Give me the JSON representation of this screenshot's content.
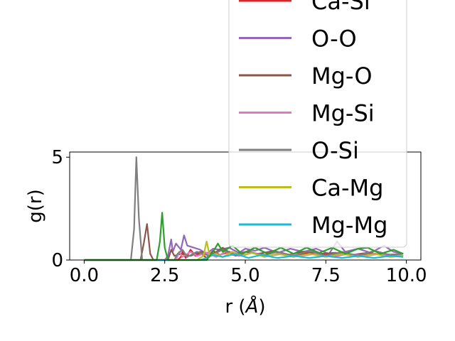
{
  "chart_data": {
    "type": "line",
    "xlabel": "r (",
    "xlabel_unit": "Å",
    "xlabel_close": ")",
    "ylabel": "g(r)",
    "xlim": [
      -0.45,
      10.45
    ],
    "ylim": [
      0,
      5.25
    ],
    "xticks": [
      {
        "value": 0.0,
        "label": "0.0"
      },
      {
        "value": 2.5,
        "label": "2.5"
      },
      {
        "value": 5.0,
        "label": "5.0"
      },
      {
        "value": 7.5,
        "label": "7.5"
      },
      {
        "value": 10.0,
        "label": "10.0"
      }
    ],
    "yticks": [
      {
        "value": 0,
        "label": "0"
      },
      {
        "value": 5,
        "label": "5"
      }
    ],
    "grid": false,
    "legend_position": "upper right, extending above the axes",
    "series": [
      {
        "name": "Ca-Si",
        "color": "#d62728",
        "points": [
          [
            0,
            0
          ],
          [
            2.9,
            0
          ],
          [
            3.0,
            0.15
          ],
          [
            3.05,
            0.4
          ],
          [
            3.15,
            0.1
          ],
          [
            3.3,
            0.5
          ],
          [
            3.45,
            0.2
          ],
          [
            3.6,
            0.35
          ],
          [
            3.8,
            0.1
          ],
          [
            4.0,
            0.45
          ],
          [
            4.2,
            0.25
          ],
          [
            4.5,
            0.4
          ],
          [
            4.8,
            0.2
          ],
          [
            5.2,
            0.35
          ],
          [
            5.6,
            0.25
          ],
          [
            6.0,
            0.4
          ],
          [
            6.5,
            0.2
          ],
          [
            7.0,
            0.35
          ],
          [
            7.5,
            0.25
          ],
          [
            8.0,
            0.3
          ],
          [
            8.5,
            0.2
          ],
          [
            9.0,
            0.3
          ],
          [
            9.5,
            0.25
          ],
          [
            9.9,
            0.2
          ]
        ]
      },
      {
        "name": "O-O",
        "color": "#9467bd",
        "points": [
          [
            0,
            0
          ],
          [
            2.5,
            0
          ],
          [
            2.6,
            0.2
          ],
          [
            2.7,
            1.0
          ],
          [
            2.75,
            0.4
          ],
          [
            2.85,
            0.8
          ],
          [
            3.0,
            0.5
          ],
          [
            3.1,
            1.2
          ],
          [
            3.2,
            0.7
          ],
          [
            3.4,
            0.6
          ],
          [
            3.6,
            0.5
          ],
          [
            3.8,
            0.3
          ],
          [
            4.0,
            0.55
          ],
          [
            4.2,
            0.5
          ],
          [
            4.5,
            0.6
          ],
          [
            4.8,
            0.35
          ],
          [
            5.0,
            0.55
          ],
          [
            5.3,
            0.45
          ],
          [
            5.6,
            0.6
          ],
          [
            6.0,
            0.35
          ],
          [
            6.4,
            0.55
          ],
          [
            6.8,
            0.4
          ],
          [
            7.2,
            0.55
          ],
          [
            7.6,
            0.3
          ],
          [
            7.85,
            0.9
          ],
          [
            8.1,
            0.4
          ],
          [
            8.5,
            0.55
          ],
          [
            8.9,
            0.35
          ],
          [
            9.3,
            0.7
          ],
          [
            9.6,
            0.4
          ],
          [
            9.9,
            0.3
          ]
        ]
      },
      {
        "name": "Mg-O",
        "color": "#8c564b",
        "points": [
          [
            0,
            0
          ],
          [
            1.75,
            0
          ],
          [
            1.85,
            0.8
          ],
          [
            1.95,
            1.75
          ],
          [
            2.05,
            0.3
          ],
          [
            2.15,
            0
          ],
          [
            2.6,
            0
          ],
          [
            2.7,
            0.5
          ],
          [
            2.8,
            0.2
          ],
          [
            3.0,
            0.3
          ],
          [
            3.3,
            0.2
          ],
          [
            3.6,
            0.4
          ],
          [
            4.0,
            0.3
          ],
          [
            4.3,
            0.6
          ],
          [
            4.6,
            0.25
          ],
          [
            5.0,
            0.4
          ],
          [
            5.4,
            0.3
          ],
          [
            5.9,
            0.45
          ],
          [
            6.3,
            0.25
          ],
          [
            6.8,
            0.4
          ],
          [
            7.3,
            0.3
          ],
          [
            7.8,
            0.35
          ],
          [
            8.3,
            0.25
          ],
          [
            8.8,
            0.35
          ],
          [
            9.3,
            0.25
          ],
          [
            9.9,
            0.3
          ]
        ]
      },
      {
        "name": "Mg-Si",
        "color": "#e377c2",
        "points": [
          [
            0,
            0
          ],
          [
            2.85,
            0
          ],
          [
            2.95,
            0.4
          ],
          [
            3.05,
            0.15
          ],
          [
            3.3,
            0.4
          ],
          [
            3.5,
            0.2
          ],
          [
            3.8,
            0.35
          ],
          [
            4.1,
            0.15
          ],
          [
            4.4,
            0.4
          ],
          [
            4.8,
            0.2
          ],
          [
            5.2,
            0.35
          ],
          [
            5.7,
            0.2
          ],
          [
            6.2,
            0.3
          ],
          [
            6.7,
            0.2
          ],
          [
            7.2,
            0.3
          ],
          [
            7.7,
            0.15
          ],
          [
            8.2,
            0.3
          ],
          [
            8.7,
            0.2
          ],
          [
            9.2,
            0.3
          ],
          [
            9.9,
            0.2
          ]
        ]
      },
      {
        "name": "O-Si",
        "color": "#7f7f7f",
        "points": [
          [
            0,
            0
          ],
          [
            1.45,
            0
          ],
          [
            1.55,
            1.5
          ],
          [
            1.62,
            5.0
          ],
          [
            1.7,
            2.0
          ],
          [
            1.8,
            0
          ],
          [
            2.8,
            0
          ],
          [
            2.9,
            0.3
          ],
          [
            3.05,
            0.5
          ],
          [
            3.2,
            0.15
          ],
          [
            3.5,
            0.4
          ],
          [
            3.9,
            0.2
          ],
          [
            4.3,
            0.5
          ],
          [
            4.7,
            0.2
          ],
          [
            5.1,
            0.45
          ],
          [
            5.5,
            0.2
          ],
          [
            6.0,
            0.4
          ],
          [
            6.5,
            0.2
          ],
          [
            7.0,
            0.45
          ],
          [
            7.5,
            0.2
          ],
          [
            8.0,
            0.4
          ],
          [
            8.5,
            0.2
          ],
          [
            9.0,
            0.45
          ],
          [
            9.5,
            0.25
          ],
          [
            9.9,
            0.3
          ]
        ]
      },
      {
        "name": "Ca-Mg",
        "color": "#bcbd22",
        "points": [
          [
            0,
            0
          ],
          [
            3.5,
            0
          ],
          [
            3.7,
            0.2
          ],
          [
            3.8,
            0.9
          ],
          [
            3.9,
            0.2
          ],
          [
            4.1,
            0.3
          ],
          [
            4.3,
            0.15
          ],
          [
            4.6,
            0.4
          ],
          [
            4.9,
            0.2
          ],
          [
            5.2,
            0.35
          ],
          [
            5.6,
            0.15
          ],
          [
            6.0,
            0.3
          ],
          [
            6.5,
            0.15
          ],
          [
            7.0,
            0.3
          ],
          [
            7.5,
            0.15
          ],
          [
            8.0,
            0.3
          ],
          [
            8.5,
            0.15
          ],
          [
            9.0,
            0.3
          ],
          [
            9.5,
            0.15
          ],
          [
            9.9,
            0.2
          ]
        ]
      },
      {
        "name": "Mg-Mg",
        "color": "#17becf",
        "points": [
          [
            0,
            0
          ],
          [
            3.6,
            0
          ],
          [
            3.8,
            0.1
          ],
          [
            4.0,
            0.25
          ],
          [
            4.3,
            0.15
          ],
          [
            4.7,
            0.3
          ],
          [
            5.1,
            0.1
          ],
          [
            5.5,
            0.25
          ],
          [
            6.0,
            0.1
          ],
          [
            6.5,
            0.2
          ],
          [
            7.0,
            0.1
          ],
          [
            7.5,
            0.2
          ],
          [
            8.0,
            0.1
          ],
          [
            8.5,
            0.2
          ],
          [
            9.0,
            0.1
          ],
          [
            9.5,
            0.2
          ],
          [
            9.9,
            0.15
          ]
        ]
      },
      {
        "name": "",
        "color": "#2ca02c",
        "points": [
          [
            0,
            0
          ],
          [
            2.25,
            0
          ],
          [
            2.35,
            0.9
          ],
          [
            2.42,
            2.3
          ],
          [
            2.5,
            0.6
          ],
          [
            2.6,
            0
          ],
          [
            3.8,
            0
          ],
          [
            4.0,
            0.4
          ],
          [
            4.15,
            0.8
          ],
          [
            4.3,
            0.4
          ],
          [
            4.6,
            0.7
          ],
          [
            4.9,
            0.3
          ],
          [
            5.3,
            0.6
          ],
          [
            5.7,
            0.3
          ],
          [
            6.1,
            0.6
          ],
          [
            6.5,
            0.3
          ],
          [
            6.9,
            0.6
          ],
          [
            7.3,
            0.35
          ],
          [
            7.7,
            0.6
          ],
          [
            8.1,
            0.3
          ],
          [
            8.5,
            0.55
          ],
          [
            8.8,
            0.6
          ],
          [
            9.2,
            0.3
          ],
          [
            9.6,
            0.5
          ],
          [
            9.9,
            0.3
          ]
        ]
      }
    ]
  }
}
